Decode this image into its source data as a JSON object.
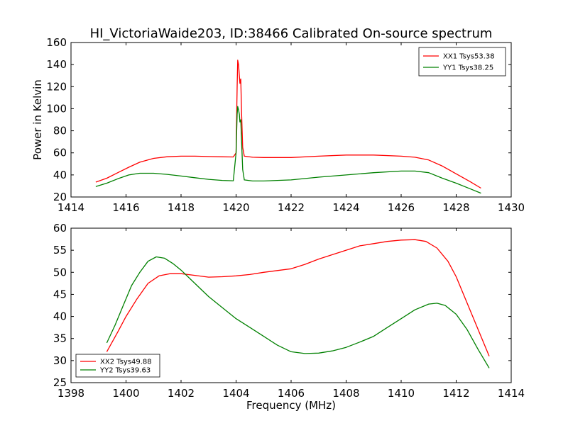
{
  "figure_title": "HI_VictoriaWaide203, ID:38466 Calibrated On-source spectrum",
  "chart_data": [
    {
      "type": "line",
      "title": "HI_VictoriaWaide203, ID:38466 Calibrated On-source spectrum",
      "xlabel": "",
      "ylabel": "Power in Kelvin",
      "xlim": [
        1414,
        1430
      ],
      "ylim": [
        20,
        160
      ],
      "xticks": [
        1414,
        1416,
        1418,
        1420,
        1422,
        1424,
        1426,
        1428,
        1430
      ],
      "yticks": [
        20,
        40,
        60,
        80,
        100,
        120,
        140,
        160
      ],
      "legend_position": "top-right",
      "grid": false,
      "series": [
        {
          "name": "XX1 Tsys53.38",
          "color": "#ff0000",
          "points": [
            [
              1414.9,
              33.5
            ],
            [
              1415.3,
              37
            ],
            [
              1415.7,
              42
            ],
            [
              1416.1,
              47
            ],
            [
              1416.5,
              51.5
            ],
            [
              1417.0,
              55
            ],
            [
              1417.5,
              56.5
            ],
            [
              1418.0,
              57
            ],
            [
              1418.5,
              57
            ],
            [
              1419.0,
              56.7
            ],
            [
              1419.5,
              56.4
            ],
            [
              1419.9,
              56.3
            ],
            [
              1420.0,
              60
            ],
            [
              1420.04,
              120
            ],
            [
              1420.06,
              144
            ],
            [
              1420.09,
              140
            ],
            [
              1420.12,
              130
            ],
            [
              1420.14,
              123
            ],
            [
              1420.17,
              127
            ],
            [
              1420.2,
              95
            ],
            [
              1420.24,
              65
            ],
            [
              1420.3,
              57
            ],
            [
              1420.6,
              56
            ],
            [
              1421.0,
              55.8
            ],
            [
              1422.0,
              55.8
            ],
            [
              1423.0,
              57
            ],
            [
              1424.0,
              58
            ],
            [
              1425.0,
              58
            ],
            [
              1426.0,
              57
            ],
            [
              1426.5,
              56
            ],
            [
              1427.0,
              53.5
            ],
            [
              1427.5,
              48
            ],
            [
              1428.0,
              41
            ],
            [
              1428.5,
              34
            ],
            [
              1428.9,
              28
            ]
          ]
        },
        {
          "name": "YY1 Tsys38.25",
          "color": "#008000",
          "points": [
            [
              1414.9,
              29.5
            ],
            [
              1415.3,
              32.5
            ],
            [
              1415.7,
              36.5
            ],
            [
              1416.1,
              40
            ],
            [
              1416.5,
              41.5
            ],
            [
              1417.0,
              41.5
            ],
            [
              1417.5,
              40.5
            ],
            [
              1418.0,
              39
            ],
            [
              1418.5,
              37.5
            ],
            [
              1419.0,
              36
            ],
            [
              1419.5,
              35
            ],
            [
              1419.9,
              34.7
            ],
            [
              1420.0,
              60
            ],
            [
              1420.04,
              95
            ],
            [
              1420.06,
              102
            ],
            [
              1420.09,
              99
            ],
            [
              1420.12,
              95
            ],
            [
              1420.14,
              88
            ],
            [
              1420.17,
              90
            ],
            [
              1420.2,
              70
            ],
            [
              1420.24,
              45
            ],
            [
              1420.3,
              35.5
            ],
            [
              1420.6,
              34.5
            ],
            [
              1421.0,
              34.5
            ],
            [
              1422.0,
              35.5
            ],
            [
              1423.0,
              38
            ],
            [
              1424.0,
              40
            ],
            [
              1425.0,
              42
            ],
            [
              1426.0,
              43.5
            ],
            [
              1426.5,
              43.5
            ],
            [
              1427.0,
              42
            ],
            [
              1427.5,
              37
            ],
            [
              1428.0,
              32.5
            ],
            [
              1428.5,
              27.5
            ],
            [
              1428.9,
              23.5
            ]
          ]
        }
      ]
    },
    {
      "type": "line",
      "title": "",
      "xlabel": "Frequency (MHz)",
      "ylabel": "",
      "xlim": [
        1398,
        1414
      ],
      "ylim": [
        25,
        60
      ],
      "xticks": [
        1398,
        1400,
        1402,
        1404,
        1406,
        1408,
        1410,
        1412,
        1414
      ],
      "yticks": [
        25,
        30,
        35,
        40,
        45,
        50,
        55,
        60
      ],
      "legend_position": "bottom-left",
      "grid": false,
      "series": [
        {
          "name": "XX2 Tsys49.88",
          "color": "#ff0000",
          "points": [
            [
              1399.3,
              32
            ],
            [
              1399.7,
              36.5
            ],
            [
              1400.0,
              40
            ],
            [
              1400.4,
              44
            ],
            [
              1400.8,
              47.5
            ],
            [
              1401.2,
              49.2
            ],
            [
              1401.6,
              49.7
            ],
            [
              1402.0,
              49.7
            ],
            [
              1402.5,
              49.3
            ],
            [
              1403.0,
              48.9
            ],
            [
              1403.5,
              49
            ],
            [
              1404.0,
              49.2
            ],
            [
              1404.5,
              49.5
            ],
            [
              1405.0,
              50
            ],
            [
              1405.5,
              50.4
            ],
            [
              1406.0,
              50.8
            ],
            [
              1406.5,
              51.8
            ],
            [
              1407.0,
              53
            ],
            [
              1407.5,
              54
            ],
            [
              1408.0,
              55
            ],
            [
              1408.5,
              56
            ],
            [
              1409.0,
              56.5
            ],
            [
              1409.5,
              57
            ],
            [
              1410.0,
              57.3
            ],
            [
              1410.5,
              57.4
            ],
            [
              1410.9,
              57
            ],
            [
              1411.3,
              55.5
            ],
            [
              1411.7,
              52.5
            ],
            [
              1412.0,
              49
            ],
            [
              1412.4,
              43
            ],
            [
              1412.8,
              37
            ],
            [
              1413.2,
              31
            ]
          ]
        },
        {
          "name": "YY2 Tsys39.63",
          "color": "#008000",
          "points": [
            [
              1399.3,
              34
            ],
            [
              1399.6,
              38
            ],
            [
              1399.9,
              42.5
            ],
            [
              1400.2,
              47
            ],
            [
              1400.5,
              50
            ],
            [
              1400.8,
              52.5
            ],
            [
              1401.1,
              53.5
            ],
            [
              1401.4,
              53.2
            ],
            [
              1401.7,
              52
            ],
            [
              1402.0,
              50.5
            ],
            [
              1402.5,
              47.5
            ],
            [
              1403.0,
              44.5
            ],
            [
              1403.5,
              42
            ],
            [
              1404.0,
              39.5
            ],
            [
              1404.5,
              37.5
            ],
            [
              1405.0,
              35.5
            ],
            [
              1405.5,
              33.5
            ],
            [
              1406.0,
              32
            ],
            [
              1406.5,
              31.6
            ],
            [
              1407.0,
              31.7
            ],
            [
              1407.5,
              32.2
            ],
            [
              1408.0,
              33
            ],
            [
              1408.5,
              34.2
            ],
            [
              1409.0,
              35.5
            ],
            [
              1409.5,
              37.5
            ],
            [
              1410.0,
              39.5
            ],
            [
              1410.5,
              41.5
            ],
            [
              1411.0,
              42.8
            ],
            [
              1411.3,
              43
            ],
            [
              1411.6,
              42.5
            ],
            [
              1412.0,
              40.5
            ],
            [
              1412.4,
              37
            ],
            [
              1412.8,
              32.5
            ],
            [
              1413.2,
              28.3
            ]
          ]
        }
      ]
    }
  ]
}
